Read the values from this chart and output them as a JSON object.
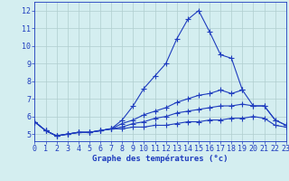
{
  "x_hours": [
    0,
    1,
    2,
    3,
    4,
    5,
    6,
    7,
    8,
    9,
    10,
    11,
    12,
    13,
    14,
    15,
    16,
    17,
    18,
    19,
    20,
    21,
    22,
    23
  ],
  "line1": [
    5.7,
    5.2,
    4.9,
    5.0,
    5.1,
    5.1,
    5.2,
    5.3,
    5.8,
    6.6,
    7.6,
    8.3,
    9.0,
    10.4,
    11.5,
    12.0,
    10.8,
    9.5,
    9.3,
    7.5,
    null,
    null,
    null,
    null
  ],
  "line2": [
    5.7,
    5.2,
    4.9,
    5.0,
    5.1,
    5.1,
    5.2,
    5.3,
    5.6,
    5.8,
    6.1,
    6.3,
    6.5,
    6.8,
    7.0,
    7.2,
    7.3,
    7.5,
    7.3,
    7.5,
    6.6,
    6.6,
    5.8,
    5.5
  ],
  "line3": [
    5.7,
    5.2,
    4.9,
    5.0,
    5.1,
    5.1,
    5.2,
    5.3,
    5.4,
    5.6,
    5.7,
    5.9,
    6.0,
    6.2,
    6.3,
    6.4,
    6.5,
    6.6,
    6.6,
    6.7,
    6.6,
    6.6,
    5.8,
    5.5
  ],
  "line4": [
    5.7,
    5.2,
    4.9,
    5.0,
    5.1,
    5.1,
    5.2,
    5.3,
    5.3,
    5.4,
    5.4,
    5.5,
    5.5,
    5.6,
    5.7,
    5.7,
    5.8,
    5.8,
    5.9,
    5.9,
    6.0,
    5.9,
    5.5,
    5.4
  ],
  "line_color": "#1e3cbe",
  "bg_color": "#d4eef0",
  "grid_color": "#b0cece",
  "xlabel": "Graphe des températures (°c)",
  "ylabel_ticks": [
    5,
    6,
    7,
    8,
    9,
    10,
    11,
    12
  ],
  "xlim": [
    0,
    23
  ],
  "ylim": [
    4.6,
    12.5
  ],
  "xtick_labels": [
    "0",
    "1",
    "2",
    "3",
    "4",
    "5",
    "6",
    "7",
    "8",
    "9",
    "10",
    "11",
    "12",
    "13",
    "14",
    "15",
    "16",
    "17",
    "18",
    "19",
    "20",
    "21",
    "22",
    "23"
  ],
  "xlabel_fontsize": 6.5,
  "tick_fontsize": 6,
  "markersize": 2.0,
  "linewidth": 0.8
}
